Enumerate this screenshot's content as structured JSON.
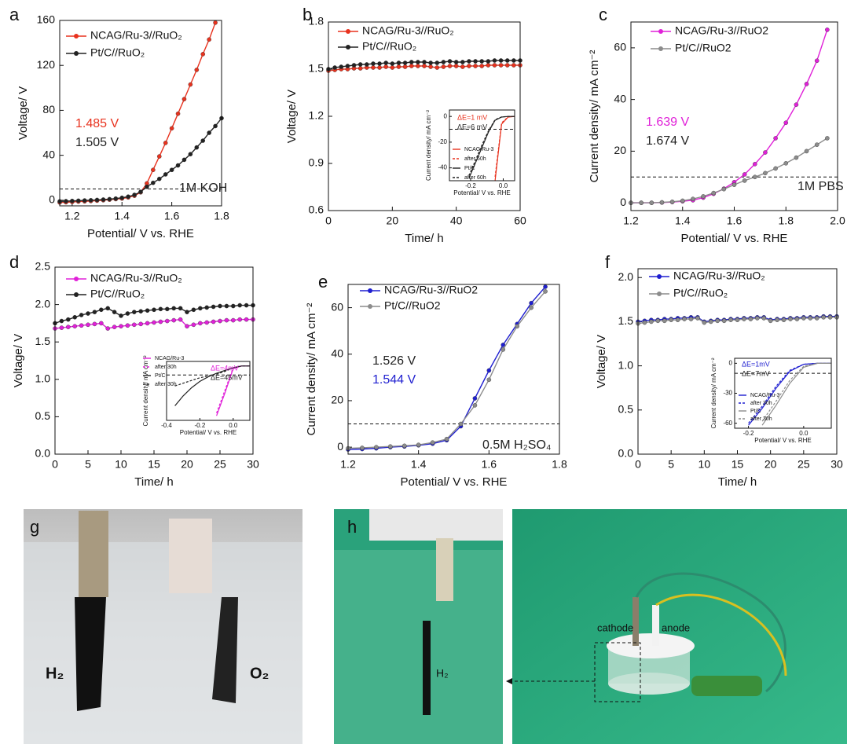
{
  "chart_data": [
    {
      "type": "line",
      "panel": "a",
      "x_label": "Potential/ V vs. RHE",
      "y_label": "Voltage/ V",
      "xlim": [
        1.15,
        1.8
      ],
      "xticks": [
        1.2,
        1.4,
        1.6,
        1.8
      ],
      "ylim": [
        -5,
        160
      ],
      "yticks": [
        0,
        40,
        80,
        120,
        160
      ],
      "hline": 10,
      "legend": "upper left",
      "markers": true,
      "x": [
        1.15,
        1.175,
        1.2,
        1.225,
        1.25,
        1.275,
        1.3,
        1.325,
        1.35,
        1.375,
        1.4,
        1.425,
        1.45,
        1.475,
        1.5,
        1.525,
        1.55,
        1.575,
        1.6,
        1.625,
        1.65,
        1.675,
        1.7,
        1.725,
        1.75,
        1.775,
        1.8
      ],
      "series": [
        {
          "name": "NCAG/Ru-3//RuO₂",
          "color": "#e8321e",
          "values": [
            -2,
            -1.8,
            -1.5,
            -1.2,
            -1,
            -0.7,
            -0.4,
            0,
            0.5,
            1,
            1.5,
            2.5,
            4,
            7,
            15,
            27,
            39,
            51,
            64,
            77,
            90,
            103,
            116,
            130,
            143,
            158,
            null
          ]
        },
        {
          "name": "Pt/C//RuO₂",
          "color": "#222222",
          "values": [
            -1,
            -0.8,
            -0.6,
            -0.4,
            -0.2,
            0,
            0.3,
            0.6,
            1,
            1.5,
            2.2,
            3.2,
            4.8,
            7.5,
            12,
            15.5,
            19,
            23,
            27,
            31,
            36,
            41,
            47,
            53,
            60,
            66,
            73
          ]
        }
      ],
      "annotations": [
        {
          "text": "1.485 V",
          "color": "#e8321e"
        },
        {
          "text": "1.505 V",
          "color": "#222222"
        },
        {
          "text": "1M KOH",
          "color": "#222222"
        }
      ]
    },
    {
      "type": "line",
      "panel": "b",
      "x_label": "Time/ h",
      "y_label": "Voltage/ V",
      "xlim": [
        0,
        60
      ],
      "xticks": [
        0,
        20,
        40,
        60
      ],
      "ylim": [
        0.6,
        1.8
      ],
      "yticks": [
        0.6,
        0.9,
        1.2,
        1.5,
        1.8
      ],
      "legend": "upper left",
      "markers": true,
      "x": [
        0,
        2,
        4,
        6,
        8,
        10,
        12,
        14,
        16,
        18,
        20,
        22,
        24,
        26,
        28,
        30,
        32,
        34,
        36,
        38,
        40,
        42,
        44,
        46,
        48,
        50,
        52,
        54,
        56,
        58,
        60
      ],
      "series": [
        {
          "name": "NCAG/Ru-3//RuO₂",
          "color": "#e8321e",
          "values": [
            1.49,
            1.495,
            1.5,
            1.5,
            1.505,
            1.505,
            1.51,
            1.51,
            1.51,
            1.515,
            1.51,
            1.515,
            1.515,
            1.52,
            1.52,
            1.52,
            1.515,
            1.51,
            1.515,
            1.52,
            1.52,
            1.515,
            1.52,
            1.52,
            1.52,
            1.525,
            1.525,
            1.525,
            1.525,
            1.525,
            1.525
          ]
        },
        {
          "name": "Pt/C//RuO₂",
          "color": "#222222",
          "values": [
            1.5,
            1.51,
            1.515,
            1.52,
            1.525,
            1.53,
            1.53,
            1.535,
            1.535,
            1.54,
            1.535,
            1.54,
            1.54,
            1.545,
            1.545,
            1.545,
            1.54,
            1.54,
            1.545,
            1.55,
            1.545,
            1.545,
            1.55,
            1.55,
            1.55,
            1.55,
            1.555,
            1.555,
            1.555,
            1.555,
            1.555
          ]
        }
      ]
    },
    {
      "type": "line",
      "x_label": "Potential/ V vs. RHE",
      "y_label": "Current density/ mA cm⁻²",
      "xlim": [
        -0.33,
        0.07
      ],
      "xticks": [
        -0.2,
        {
          "value": 0,
          "label": "0.0"
        }
      ],
      "ylim": [
        -50,
        5
      ],
      "yticks": [
        0,
        -20,
        -40
      ],
      "hline": -10,
      "legend": "center left",
      "x": [
        -0.33,
        -0.29,
        -0.25,
        -0.21,
        -0.17,
        -0.13,
        -0.09,
        -0.05,
        -0.01,
        0.03,
        0.07
      ],
      "series": [
        {
          "name": "NCAG/Ru-3",
          "color": "#e8321e",
          "dash": false,
          "values": [
            null,
            null,
            null,
            null,
            null,
            null,
            null,
            -50,
            -6,
            -0.5,
            0
          ]
        },
        {
          "name": "after 60h",
          "color": "#e8321e",
          "dash": true,
          "values": [
            null,
            null,
            null,
            null,
            null,
            null,
            null,
            -47,
            -5,
            -0.4,
            0
          ]
        },
        {
          "name": "Pt/C",
          "color": "#222222",
          "dash": false,
          "values": [
            null,
            null,
            null,
            -48,
            -36,
            -24,
            -12,
            -3,
            -0.5,
            0,
            0
          ]
        },
        {
          "name": "after 60h",
          "color": "#222222",
          "dash": true,
          "values": [
            null,
            null,
            null,
            -46,
            -34,
            -22,
            -11,
            -2.5,
            -0.4,
            0,
            0
          ]
        }
      ],
      "annotations": [
        {
          "text": "ΔE=1 mV",
          "color": "#e8321e"
        },
        {
          "text": "ΔE=6 mV",
          "color": "#222222"
        }
      ]
    },
    {
      "type": "line",
      "panel": "c",
      "x_label": "Potential/ V vs. RHE",
      "y_label": "Current density/ mA cm⁻²",
      "xlim": [
        1.2,
        2.0
      ],
      "xticks": [
        1.2,
        1.4,
        1.6,
        1.8,
        {
          "value": 2,
          "label": "2.0"
        }
      ],
      "ylim": [
        -3,
        70
      ],
      "yticks": [
        0,
        20,
        40,
        60
      ],
      "hline": 10,
      "legend": "upper left",
      "markers": true,
      "x": [
        1.2,
        1.24,
        1.28,
        1.32,
        1.36,
        1.4,
        1.44,
        1.48,
        1.52,
        1.56,
        1.6,
        1.64,
        1.68,
        1.72,
        1.76,
        1.8,
        1.84,
        1.88,
        1.92,
        1.96
      ],
      "series": [
        {
          "name": "NCAG/Ru-3//RuO2",
          "color": "#e020d8",
          "values": [
            0,
            0,
            0,
            0.1,
            0.3,
            0.6,
            1,
            2,
            3.5,
            5.5,
            8,
            11,
            15,
            19.5,
            25,
            31,
            38,
            46,
            55,
            67
          ]
        },
        {
          "name": "Pt/C//RuO2",
          "color": "#8c8c8c",
          "values": [
            0,
            0,
            0,
            0.2,
            0.4,
            0.8,
            1.5,
            2.5,
            3.8,
            5.3,
            7,
            8.6,
            10,
            11.5,
            13.3,
            15.3,
            17.5,
            20,
            22.5,
            25
          ]
        }
      ],
      "annotations": [
        {
          "text": "1.639 V",
          "color": "#e020d8"
        },
        {
          "text": "1.674 V",
          "color": "#222222"
        },
        {
          "text": "1M PBS",
          "color": "#222222"
        }
      ]
    },
    {
      "type": "line",
      "panel": "d",
      "x_label": "Time/ h",
      "y_label": "Voltage/ V",
      "xlim": [
        0,
        30
      ],
      "xticks": [
        0,
        5,
        10,
        15,
        20,
        25,
        30
      ],
      "ylim": [
        0,
        2.5
      ],
      "yticks": [
        {
          "value": 0,
          "label": "0.0"
        },
        0.5,
        {
          "value": 1,
          "label": "1.0"
        },
        1.5,
        {
          "value": 2,
          "label": "2.0"
        },
        2.5
      ],
      "legend": "upper left",
      "markers": true,
      "x": [
        0,
        1,
        2,
        3,
        4,
        5,
        6,
        7,
        8,
        9,
        10,
        11,
        12,
        13,
        14,
        15,
        16,
        17,
        18,
        19,
        20,
        21,
        22,
        23,
        24,
        25,
        26,
        27,
        28,
        29,
        30
      ],
      "series": [
        {
          "name": "NCAG/Ru-3//RuO₂",
          "color": "#e020d8",
          "values": [
            1.68,
            1.69,
            1.7,
            1.71,
            1.72,
            1.73,
            1.74,
            1.75,
            1.68,
            1.7,
            1.71,
            1.72,
            1.73,
            1.74,
            1.75,
            1.76,
            1.77,
            1.78,
            1.79,
            1.8,
            1.71,
            1.73,
            1.75,
            1.76,
            1.77,
            1.78,
            1.79,
            1.79,
            1.8,
            1.8,
            1.8
          ]
        },
        {
          "name": "Pt/C//RuO₂",
          "color": "#222222",
          "values": [
            1.75,
            1.78,
            1.8,
            1.83,
            1.86,
            1.88,
            1.9,
            1.93,
            1.95,
            1.9,
            1.85,
            1.88,
            1.9,
            1.91,
            1.92,
            1.93,
            1.94,
            1.94,
            1.95,
            1.95,
            1.9,
            1.93,
            1.95,
            1.96,
            1.97,
            1.98,
            1.98,
            1.98,
            1.99,
            1.99,
            1.99
          ]
        }
      ]
    },
    {
      "type": "line",
      "x_label": "Potential/ V vs. RHE",
      "y_label": "Current density/ mA cm⁻²",
      "xlim": [
        -0.4,
        0.1
      ],
      "xticks": [
        -0.4,
        -0.2,
        {
          "value": 0,
          "label": "0.0"
        }
      ],
      "ylim": [
        -60,
        5
      ],
      "hline": -10,
      "legend": "upper left",
      "x": [
        -0.4,
        -0.35,
        -0.3,
        -0.25,
        -0.2,
        -0.15,
        -0.1,
        -0.05,
        0,
        0.05,
        0.1
      ],
      "series": [
        {
          "name": "NCAG/Ru-3",
          "color": "#e020d8",
          "dash": false,
          "values": [
            null,
            null,
            null,
            null,
            null,
            null,
            -55,
            -30,
            -3,
            0,
            0
          ]
        },
        {
          "name": "after 30h",
          "color": "#e020d8",
          "dash": true,
          "values": [
            null,
            null,
            null,
            null,
            null,
            null,
            -52,
            -27,
            -2,
            0,
            0
          ]
        },
        {
          "name": "Pt/C",
          "color": "#222222",
          "dash": false,
          "values": [
            null,
            -44,
            -33,
            -24,
            -17,
            -12,
            -8,
            -5,
            -2,
            0,
            0
          ]
        },
        {
          "name": "after 30h",
          "color": "#222222",
          "dash": true,
          "values": [
            null,
            -22,
            -19,
            -16,
            -13,
            -11,
            -9,
            -6,
            -2,
            0,
            0
          ]
        }
      ],
      "annotations": [
        {
          "text": "ΔE=4mV",
          "color": "#e020d8"
        },
        {
          "text": "ΔE=45mV",
          "color": "#222222"
        }
      ]
    },
    {
      "type": "line",
      "panel": "e",
      "x_label": "Potential/ V vs. RHE",
      "y_label": "Current density/ mA cm⁻²",
      "xlim": [
        1.2,
        1.8
      ],
      "xticks": [
        1.2,
        1.4,
        1.6,
        1.8
      ],
      "ylim": [
        -3,
        70
      ],
      "yticks": [
        0,
        20,
        40,
        60
      ],
      "hline": 10,
      "legend": "upper left",
      "markers": true,
      "x": [
        1.2,
        1.24,
        1.28,
        1.32,
        1.36,
        1.4,
        1.44,
        1.48,
        1.52,
        1.56,
        1.6,
        1.64,
        1.68,
        1.72,
        1.76
      ],
      "series": [
        {
          "name": "NCAG/Ru-3//RuO2",
          "color": "#1f1fd0",
          "values": [
            -1,
            -0.8,
            -0.5,
            0,
            0.3,
            0.8,
            1.5,
            3,
            9,
            21,
            33,
            44,
            53,
            62,
            69
          ]
        },
        {
          "name": "Pt/C//RuO2",
          "color": "#8c8c8c",
          "values": [
            -0.5,
            -0.3,
            0,
            0.3,
            0.6,
            1,
            2,
            3.5,
            10,
            18,
            29,
            42,
            52,
            60,
            67
          ]
        }
      ],
      "annotations": [
        {
          "text": "1.526 V",
          "color": "#222222"
        },
        {
          "text": "1.544 V",
          "color": "#1f1fd0"
        },
        {
          "text": "0.5M H₂SO₄",
          "color": "#222222"
        }
      ]
    },
    {
      "type": "line",
      "panel": "f",
      "x_label": "Time/ h",
      "y_label": "Voltage/ V",
      "xlim": [
        0,
        30
      ],
      "xticks": [
        0,
        5,
        10,
        15,
        20,
        25,
        30
      ],
      "ylim": [
        0,
        2.1
      ],
      "yticks": [
        {
          "value": 0,
          "label": "0.0"
        },
        0.5,
        {
          "value": 1,
          "label": "1.0"
        },
        1.5,
        {
          "value": 2,
          "label": "2.0"
        }
      ],
      "legend": "upper left",
      "markers": true,
      "x": [
        0,
        1,
        2,
        3,
        4,
        5,
        6,
        7,
        8,
        9,
        10,
        11,
        12,
        13,
        14,
        15,
        16,
        17,
        18,
        19,
        20,
        21,
        22,
        23,
        24,
        25,
        26,
        27,
        28,
        29,
        30
      ],
      "series": [
        {
          "name": "NCAG/Ru-3//RuO₂",
          "color": "#1f1fd0",
          "values": [
            1.5,
            1.51,
            1.52,
            1.52,
            1.53,
            1.53,
            1.54,
            1.54,
            1.55,
            1.55,
            1.5,
            1.51,
            1.52,
            1.52,
            1.53,
            1.53,
            1.54,
            1.54,
            1.55,
            1.55,
            1.52,
            1.53,
            1.53,
            1.54,
            1.54,
            1.55,
            1.55,
            1.55,
            1.56,
            1.56,
            1.56
          ]
        },
        {
          "name": "Pt/C//RuO₂",
          "color": "#8c8c8c",
          "values": [
            1.48,
            1.49,
            1.5,
            1.51,
            1.51,
            1.52,
            1.52,
            1.53,
            1.53,
            1.54,
            1.49,
            1.5,
            1.51,
            1.51,
            1.52,
            1.52,
            1.53,
            1.53,
            1.54,
            1.54,
            1.51,
            1.52,
            1.52,
            1.53,
            1.53,
            1.54,
            1.54,
            1.54,
            1.55,
            1.55,
            1.55
          ]
        }
      ]
    },
    {
      "type": "line",
      "x_label": "Potential/ V vs. RHE",
      "y_label": "Current density/ mA cm⁻²",
      "xlim": [
        -0.25,
        0.1
      ],
      "xticks": [
        -0.2,
        {
          "value": 0,
          "label": "0.0"
        }
      ],
      "ylim": [
        -65,
        5
      ],
      "yticks": [
        0,
        -30,
        -60
      ],
      "hline": -10,
      "legend": "lower left",
      "x": [
        -0.25,
        -0.2,
        -0.15,
        -0.1,
        -0.05,
        0,
        0.05,
        0.1
      ],
      "series": [
        {
          "name": "NCAG/Ru-3",
          "color": "#1f1fd0",
          "dash": false,
          "values": [
            null,
            -62,
            -45,
            -25,
            -8,
            -1,
            0,
            0
          ]
        },
        {
          "name": "after 30h",
          "color": "#1f1fd0",
          "dash": true,
          "values": [
            null,
            -60,
            -43,
            -23,
            -7,
            -1,
            0,
            0
          ]
        },
        {
          "name": "Pt/C",
          "color": "#8c8c8c",
          "dash": false,
          "values": [
            null,
            null,
            -62,
            -42,
            -20,
            -4,
            0,
            0
          ]
        },
        {
          "name": "after 30h",
          "color": "#8c8c8c",
          "dash": true,
          "values": [
            null,
            null,
            -58,
            -38,
            -17,
            -3,
            0,
            0
          ]
        }
      ],
      "annotations": [
        {
          "text": "ΔE=1mV",
          "color": "#1f1fd0"
        },
        {
          "text": "ΔE=7mV",
          "color": "#222222"
        }
      ]
    }
  ],
  "photos": [
    {
      "panel": "g",
      "labels": [
        "H₂",
        "O₂"
      ]
    },
    {
      "panel": "h",
      "labels": [
        "H₂",
        "cathode",
        "anode"
      ]
    }
  ]
}
